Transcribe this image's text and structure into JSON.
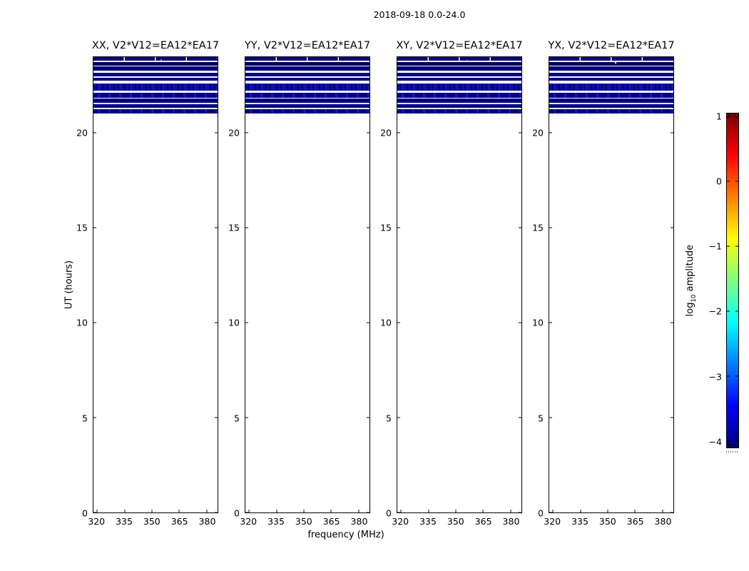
{
  "chart_data": {
    "type": "heatmap",
    "title": "2018-09-18 0.0-24.0",
    "xlabel": "frequency (MHz)",
    "ylabel": "UT (hours)",
    "xlim": [
      318,
      386
    ],
    "ylim": [
      0,
      24
    ],
    "x_ticks": [
      320,
      335,
      350,
      365,
      380
    ],
    "y_ticks": [
      0,
      5,
      10,
      15,
      20
    ],
    "x_units": "MHz",
    "y_units": "hours",
    "grid": false,
    "subplots": [
      {
        "polarization": "XX",
        "title": "XX, V2*V12=EA12*EA17"
      },
      {
        "polarization": "YY",
        "title": "YY, V2*V12=EA12*EA17"
      },
      {
        "polarization": "XY",
        "title": "XY, V2*V12=EA12*EA17"
      },
      {
        "polarization": "YX",
        "title": "YX, V2*V12=EA12*EA17"
      }
    ],
    "description": "Dynamic-spectrum waterfall plots of visibility amplitude vs frequency (320-380 MHz) and UT (0-24 h). Data appear only between UT ~21.0 and 24.0 as horizontal dark-blue bands (log10 amplitude ~ -3.5 to -4, near the bottom of the jet colormap); the rest of the time range is blank (no data). Band pattern is essentially identical in all four polarization panels.",
    "bands": [
      {
        "ut_top": 24.0,
        "ut_bot": 23.8,
        "color": "#000099",
        "style": "segmented"
      },
      {
        "ut_top": 23.72,
        "ut_bot": 23.56,
        "color": "#000052",
        "style": "solid"
      },
      {
        "ut_top": 23.5,
        "ut_bot": 23.28,
        "color": "#000084",
        "style": "solid"
      },
      {
        "ut_top": 23.17,
        "ut_bot": 22.98,
        "color": "#000092",
        "style": "solid"
      },
      {
        "ut_top": 22.92,
        "ut_bot": 22.75,
        "color": "#000088",
        "style": "solid"
      },
      {
        "ut_top": 22.62,
        "ut_bot": 22.24,
        "color": "#0a0ab2",
        "style": "noisy"
      },
      {
        "ut_top": 22.12,
        "ut_bot": 21.87,
        "color": "#000090",
        "style": "noisy"
      },
      {
        "ut_top": 21.8,
        "ut_bot": 21.58,
        "color": "#000088",
        "style": "solid"
      },
      {
        "ut_top": 21.52,
        "ut_bot": 21.34,
        "color": "#000092",
        "style": "solid"
      },
      {
        "ut_top": 21.27,
        "ut_bot": 21.02,
        "color": "#000085",
        "style": "noisy"
      }
    ],
    "specks": [
      {
        "subplot": 0,
        "x_pct": 54,
        "ut": 23.88,
        "color": "#cc7a00"
      },
      {
        "subplot": 2,
        "x_pct": 56,
        "ut": 23.86,
        "color": "#d2a40a"
      },
      {
        "subplot": 3,
        "x_pct": 53,
        "ut": 23.73,
        "color": "#ffffff"
      }
    ],
    "colorbar": {
      "label_prefix": "log",
      "label_sub": "10",
      "label_suffix": "amplitude",
      "colormap": "jet",
      "vmin": -4,
      "vmax": 1,
      "range_hint": [
        -4.1,
        1.05
      ],
      "ticks": [
        {
          "value": 1,
          "label": "1"
        },
        {
          "value": 0,
          "label": "0"
        },
        {
          "value": -1,
          "label": "−1"
        },
        {
          "value": -2,
          "label": "−2"
        },
        {
          "value": -3,
          "label": "−3"
        },
        {
          "value": -4,
          "label": "−4"
        }
      ],
      "colormap_stops": [
        [
          "#7f0000",
          0
        ],
        [
          "#ff0000",
          12.5
        ],
        [
          "#ff7f00",
          25
        ],
        [
          "#ffff00",
          37.5
        ],
        [
          "#7fff7f",
          50
        ],
        [
          "#00ffff",
          62.5
        ],
        [
          "#007fff",
          75
        ],
        [
          "#0000ff",
          87.5
        ],
        [
          "#00007f",
          100
        ]
      ]
    }
  }
}
